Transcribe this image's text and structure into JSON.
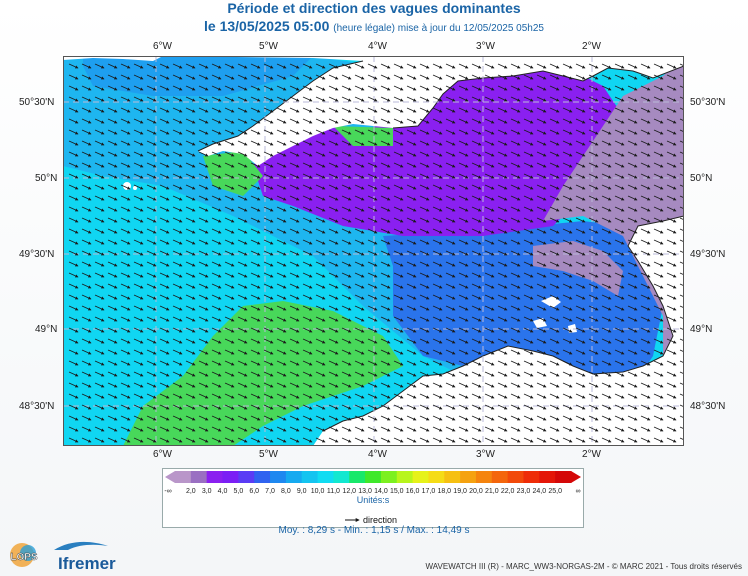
{
  "title": "Période et direction des vagues dominantes",
  "subtitle_date": "le 13/05/2025 05:00",
  "subtitle_note": "(heure légale) mise à jour du 12/05/2025 05h25",
  "lon_labels": [
    "6°W",
    "5°W",
    "4°W",
    "3°W",
    "2°W"
  ],
  "lat_labels": [
    "50°30'N",
    "50°N",
    "49°30'N",
    "49°N",
    "48°30'N"
  ],
  "colorbar": {
    "ticks": [
      "-∞",
      "2,0",
      "3,0",
      "4,0",
      "5,0",
      "6,0",
      "7,0",
      "8,0",
      "9,0",
      "10,0",
      "11,0",
      "12,0",
      "13,0",
      "14,0",
      "15,0",
      "16,0",
      "17,0",
      "18,0",
      "19,0",
      "20,0",
      "21,0",
      "22,0",
      "23,0",
      "24,0",
      "25,0",
      "∞"
    ],
    "colors": [
      "#b996c9",
      "#9a6fc2",
      "#8a20f0",
      "#7b1ff5",
      "#5a3cf5",
      "#2f63f0",
      "#1e88f0",
      "#16aaf0",
      "#14c4f0",
      "#10dcf2",
      "#12e8d0",
      "#18e86a",
      "#3fe82a",
      "#7cf020",
      "#b8f51c",
      "#e6f21a",
      "#f5dc16",
      "#f6c012",
      "#f5a210",
      "#f5840e",
      "#f4660c",
      "#f24a0a",
      "#ee2d08",
      "#e41608",
      "#d40808"
    ],
    "unit": "Unités:s",
    "arrow_label": "direction"
  },
  "stats": "Moy. : 8,29 s   -   Min. : 1,15 s / Max. : 14,49 s",
  "footer": "WAVEWATCH III (R) - MARC_WW3-NORGAS-2M - © MARC 2021 - Tous droits réservés",
  "logos": {
    "lops": "LOPS",
    "ifremer": "Ifremer"
  },
  "field_colors": {
    "cyan": "#10d6f2",
    "light_blue": "#1eb2f0",
    "blue": "#2a74ec",
    "purple": "#8a20f0",
    "lilac": "#a68ac0",
    "green": "#48d85a",
    "land": "#ffffff"
  }
}
